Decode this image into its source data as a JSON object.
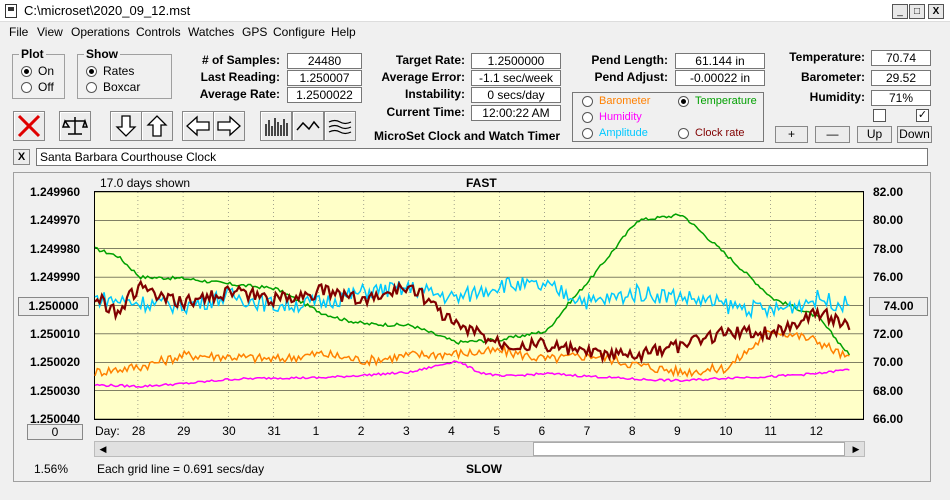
{
  "window": {
    "title": "C:\\microset\\2020_09_12.mst",
    "min": "_",
    "max": "□",
    "close": "X"
  },
  "menu": [
    "File",
    "View",
    "Operations",
    "Controls",
    "Watches",
    "GPS",
    "Configure",
    "Help"
  ],
  "plot_group": {
    "title": "Plot",
    "on": "On",
    "off": "Off",
    "selected": "On"
  },
  "show_group": {
    "title": "Show",
    "rates": "Rates",
    "boxcar": "Boxcar",
    "selected": "Rates"
  },
  "stats": {
    "samples_label": "# of Samples:",
    "samples": "24480",
    "last_reading_label": "Last Reading:",
    "last_reading": "1.250007",
    "average_rate_label": "Average Rate:",
    "average_rate": "1.2500022",
    "target_rate_label": "Target Rate:",
    "target_rate": "1.2500000",
    "average_error_label": "Average Error:",
    "average_error": "-1.1 sec/week",
    "instability_label": "Instability:",
    "instability": "0 secs/day",
    "current_time_label": "Current Time:",
    "current_time": "12:00:22 AM",
    "pend_length_label": "Pend Length:",
    "pend_length": "61.144 in",
    "pend_adjust_label": "Pend Adjust:",
    "pend_adjust": "-0.00022 in",
    "temperature_label": "Temperature:",
    "temperature": "70.74",
    "barometer_label": "Barometer:",
    "barometer": "29.52",
    "humidity_label": "Humidity:",
    "humidity": "71%"
  },
  "app_caption": "MicroSet Clock and Watch Timer",
  "legend_options": {
    "barometer": {
      "label": "Barometer",
      "color": "#ff8000"
    },
    "temperature": {
      "label": "Temperature",
      "color": "#00a000",
      "selected": true
    },
    "humidity": {
      "label": "Humidity",
      "color": "#ff00ff"
    },
    "amplitude": {
      "label": "Amplitude",
      "color": "#00c8ff"
    },
    "clock_rate": {
      "label": "Clock rate",
      "color": "#800000"
    }
  },
  "adjust_buttons": {
    "plus": "+",
    "minus": "—",
    "up": "Up",
    "down": "Down"
  },
  "clock_name": "Santa Barbara Courthouse Clock",
  "clear_name_button": "X",
  "plot": {
    "days_shown": "17.0 days shown",
    "fast_label": "FAST",
    "slow_label": "SLOW",
    "grid_note": "Each grid line = 0.691 secs/day",
    "percent": "1.56%",
    "offset_button": "0",
    "center_left_button": "1.250000",
    "center_right_button": "74.00",
    "day_label": "Day:"
  },
  "chart_data": {
    "type": "line",
    "x_ticks": [
      "28",
      "29",
      "30",
      "31",
      "1",
      "2",
      "3",
      "4",
      "5",
      "6",
      "7",
      "8",
      "9",
      "10",
      "11",
      "12"
    ],
    "y_left_ticks": [
      "1.249960",
      "1.249970",
      "1.249980",
      "1.249990",
      "1.250000",
      "1.250010",
      "1.250020",
      "1.250030",
      "1.250040"
    ],
    "y_left_range": [
      1.24996,
      1.25004
    ],
    "y_right_ticks": [
      "82.00",
      "80.00",
      "78.00",
      "76.00",
      "74.00",
      "72.00",
      "70.00",
      "68.00",
      "66.00"
    ],
    "y_right_range": [
      66,
      82
    ],
    "grid": true,
    "series": [
      {
        "name": "Temperature",
        "color": "#00a000",
        "axis": "right",
        "x": [
          0,
          0.5,
          1,
          2,
          3,
          4,
          5,
          5.5,
          6,
          7,
          8,
          9,
          10,
          10.5,
          11,
          12,
          13,
          14,
          15,
          16,
          16.7
        ],
        "values": [
          78,
          77.5,
          76,
          75.9,
          75.5,
          75.2,
          73.5,
          73,
          72.7,
          72.6,
          71.4,
          71.6,
          72.2,
          74.2,
          76,
          80,
          80.4,
          77.5,
          74.5,
          73.2,
          70.5
        ]
      },
      {
        "name": "Barometer",
        "color": "#ff8000",
        "axis": "right",
        "x": [
          0,
          1,
          2,
          3,
          4,
          5,
          6,
          7,
          8,
          9,
          10,
          11,
          12,
          13,
          14,
          15,
          16,
          16.7
        ],
        "values": [
          69.3,
          69.7,
          70.5,
          70.4,
          70.2,
          70.6,
          70.1,
          70.5,
          70.6,
          70.8,
          70.2,
          70.5,
          69.8,
          69.3,
          69.6,
          72.3,
          71.5,
          70.2
        ]
      },
      {
        "name": "Humidity",
        "color": "#ff00ff",
        "axis": "right",
        "x": [
          0,
          1,
          2,
          3,
          4,
          5,
          6,
          7,
          8,
          8.5,
          9,
          10,
          11,
          12,
          13,
          14,
          15,
          16,
          16.7
        ],
        "values": [
          68.4,
          68.3,
          68.5,
          68.8,
          68.9,
          68.9,
          69.1,
          69.3,
          70.1,
          69.3,
          69.0,
          69.2,
          69.0,
          68.8,
          68.7,
          68.9,
          69.0,
          69.2,
          69.5
        ]
      },
      {
        "name": "Amplitude",
        "color": "#00c8ff",
        "axis": "right",
        "x": [
          0,
          1,
          2,
          3,
          4,
          5,
          6,
          7,
          8,
          9,
          10,
          11,
          12,
          13,
          14,
          15,
          16,
          16.7
        ],
        "values": [
          74.5,
          74.2,
          74,
          74.7,
          74,
          74.2,
          75,
          75.2,
          74.5,
          75.5,
          75.3,
          74.2,
          74.9,
          74.6,
          74,
          73.6,
          74.5,
          74
        ]
      },
      {
        "name": "Clock rate",
        "color": "#800000",
        "axis": "left",
        "x": [
          0,
          0.5,
          1,
          1.5,
          2,
          3,
          4,
          5,
          6,
          7,
          8,
          9,
          10,
          11,
          12,
          13,
          14,
          15,
          16,
          16.7
        ],
        "values": [
          1.249997,
          1.250002,
          1.249993,
          1.249998,
          1.249999,
          1.249995,
          1.249998,
          1.249995,
          1.249998,
          1.249993,
          1.250007,
          1.250013,
          1.250014,
          1.250017,
          1.250018,
          1.250014,
          1.250009,
          1.25001,
          1.250002,
          1.250007
        ]
      }
    ]
  }
}
